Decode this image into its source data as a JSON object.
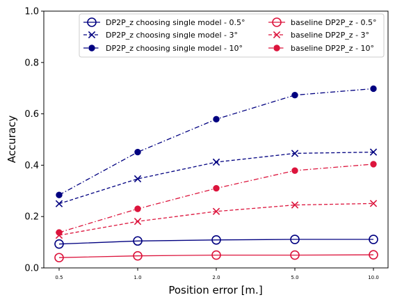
{
  "chart_data": {
    "type": "line",
    "xlabel": "Position error [m.]",
    "ylabel": "Accuracy",
    "categories": [
      "0.5",
      "1.0",
      "2.0",
      "5.0",
      "10.0"
    ],
    "ylim": [
      0,
      1.0
    ],
    "yticks": [
      "0.0",
      "0.2",
      "0.4",
      "0.6",
      "0.8",
      "1.0"
    ],
    "grid": false,
    "legend_position": "top-right",
    "series": [
      {
        "name": "DP2P_z choosing single model - 0.5°",
        "color": "#000080",
        "line_style": "solid",
        "marker": "open-circle",
        "values": [
          0.093,
          0.105,
          0.109,
          0.111,
          0.111
        ]
      },
      {
        "name": "DP2P_z choosing single model - 3°",
        "color": "#000080",
        "line_style": "dashed",
        "marker": "x",
        "values": [
          0.25,
          0.347,
          0.412,
          0.446,
          0.451
        ]
      },
      {
        "name": "DP2P_z choosing single model - 10°",
        "color": "#000080",
        "line_style": "dashdot",
        "marker": "filled-circle",
        "values": [
          0.284,
          0.451,
          0.579,
          0.673,
          0.698
        ]
      },
      {
        "name": "baseline DP2P_z - 0.5°",
        "color": "#dc143c",
        "line_style": "solid",
        "marker": "open-circle",
        "values": [
          0.04,
          0.047,
          0.05,
          0.05,
          0.051
        ]
      },
      {
        "name": "baseline DP2P_z - 3°",
        "color": "#dc143c",
        "line_style": "dashed",
        "marker": "x",
        "values": [
          0.127,
          0.181,
          0.22,
          0.245,
          0.251
        ]
      },
      {
        "name": "baseline DP2P_z - 10°",
        "color": "#dc143c",
        "line_style": "dashdot",
        "marker": "filled-circle",
        "values": [
          0.138,
          0.23,
          0.31,
          0.379,
          0.404
        ]
      }
    ]
  }
}
